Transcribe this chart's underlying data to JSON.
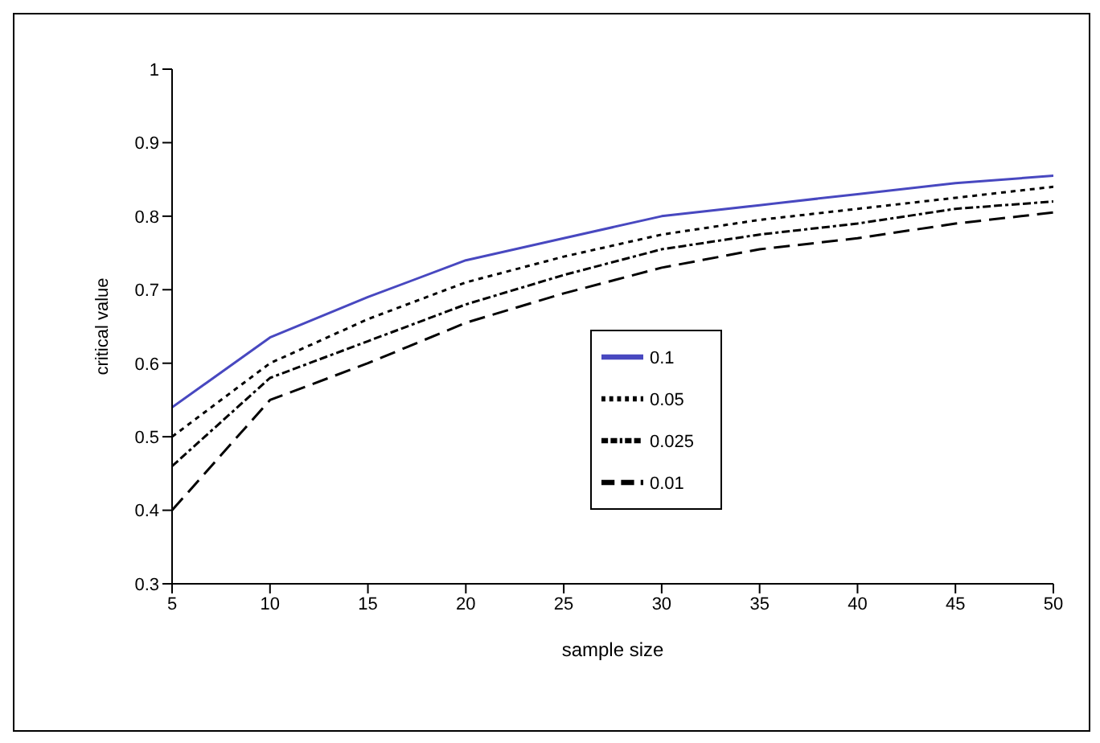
{
  "chart_data": {
    "type": "line",
    "xlabel": "sample size",
    "ylabel": "critical value",
    "x": [
      5,
      10,
      15,
      20,
      25,
      30,
      35,
      40,
      45,
      50
    ],
    "xlim": [
      5,
      50
    ],
    "xticks": [
      5,
      10,
      15,
      20,
      25,
      30,
      35,
      40,
      45,
      50
    ],
    "ylim": [
      0.3,
      1
    ],
    "yticks": [
      0.3,
      0.4,
      0.5,
      0.6,
      0.7,
      0.8,
      0.9,
      1
    ],
    "grid": false,
    "legend": "right",
    "marker": "none",
    "series": [
      {
        "name": "0.1",
        "color": "#4848c0",
        "line_style": "solid",
        "values": [
          0.54,
          0.635,
          0.69,
          0.74,
          0.77,
          0.8,
          0.815,
          0.83,
          0.845,
          0.855
        ]
      },
      {
        "name": "0.05",
        "color": "#000000",
        "line_style": "dotted",
        "values": [
          0.5,
          0.6,
          0.66,
          0.71,
          0.745,
          0.775,
          0.795,
          0.81,
          0.825,
          0.84
        ]
      },
      {
        "name": "0.025",
        "color": "#000000",
        "line_style": "dashed",
        "values": [
          0.46,
          0.58,
          0.63,
          0.68,
          0.72,
          0.755,
          0.775,
          0.79,
          0.81,
          0.82
        ]
      },
      {
        "name": "0.01",
        "color": "#000000",
        "line_style": "dashed",
        "values": [
          0.4,
          0.55,
          0.6,
          0.655,
          0.695,
          0.73,
          0.755,
          0.77,
          0.79,
          0.805
        ]
      }
    ]
  }
}
